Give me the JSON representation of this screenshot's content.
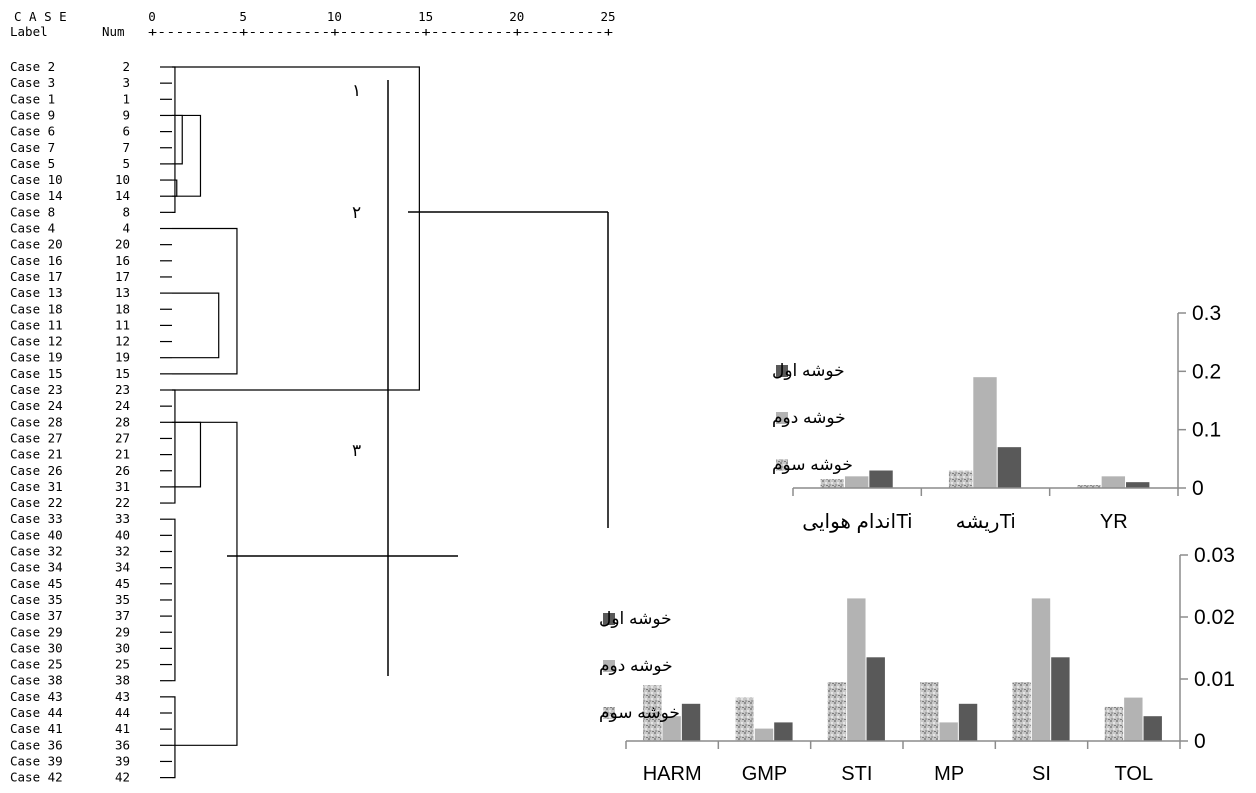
{
  "dendrogram": {
    "header": {
      "case": "C A S E",
      "label": "Label",
      "num": "Num"
    },
    "scale_ticks": [
      "0",
      "5",
      "10",
      "15",
      "20",
      "25"
    ],
    "scale_rule": "+---------+---------+---------+---------+---------+",
    "cluster_markers": [
      "١",
      "٢",
      "٣"
    ],
    "cases": [
      {
        "label": "Case 2",
        "num": "2"
      },
      {
        "label": "Case 3",
        "num": "3"
      },
      {
        "label": "Case 1",
        "num": "1"
      },
      {
        "label": "Case 9",
        "num": "9"
      },
      {
        "label": "Case 6",
        "num": "6"
      },
      {
        "label": "Case 7",
        "num": "7"
      },
      {
        "label": "Case 5",
        "num": "5"
      },
      {
        "label": "Case 10",
        "num": "10"
      },
      {
        "label": "Case 14",
        "num": "14"
      },
      {
        "label": "Case 8",
        "num": "8"
      },
      {
        "label": "Case 4",
        "num": "4"
      },
      {
        "label": "Case 20",
        "num": "20"
      },
      {
        "label": "Case 16",
        "num": "16"
      },
      {
        "label": "Case 17",
        "num": "17"
      },
      {
        "label": "Case 13",
        "num": "13"
      },
      {
        "label": "Case 18",
        "num": "18"
      },
      {
        "label": "Case 11",
        "num": "11"
      },
      {
        "label": "Case 12",
        "num": "12"
      },
      {
        "label": "Case 19",
        "num": "19"
      },
      {
        "label": "Case 15",
        "num": "15"
      },
      {
        "label": "Case 23",
        "num": "23"
      },
      {
        "label": "Case 24",
        "num": "24"
      },
      {
        "label": "Case 28",
        "num": "28"
      },
      {
        "label": "Case 27",
        "num": "27"
      },
      {
        "label": "Case 21",
        "num": "21"
      },
      {
        "label": "Case 26",
        "num": "26"
      },
      {
        "label": "Case 31",
        "num": "31"
      },
      {
        "label": "Case 22",
        "num": "22"
      },
      {
        "label": "Case 33",
        "num": "33"
      },
      {
        "label": "Case 40",
        "num": "40"
      },
      {
        "label": "Case 32",
        "num": "32"
      },
      {
        "label": "Case 34",
        "num": "34"
      },
      {
        "label": "Case 45",
        "num": "45"
      },
      {
        "label": "Case 35",
        "num": "35"
      },
      {
        "label": "Case 37",
        "num": "37"
      },
      {
        "label": "Case 29",
        "num": "29"
      },
      {
        "label": "Case 30",
        "num": "30"
      },
      {
        "label": "Case 25",
        "num": "25"
      },
      {
        "label": "Case 38",
        "num": "38"
      },
      {
        "label": "Case 43",
        "num": "43"
      },
      {
        "label": "Case 44",
        "num": "44"
      },
      {
        "label": "Case 41",
        "num": "41"
      },
      {
        "label": "Case 36",
        "num": "36"
      },
      {
        "label": "Case 39",
        "num": "39"
      },
      {
        "label": "Case 42",
        "num": "42"
      }
    ],
    "merges": [
      {
        "rows": [
          0,
          9
        ],
        "distance": 0.6
      },
      {
        "rows": [
          3,
          6
        ],
        "distance": 1.0
      },
      {
        "rows": [
          7,
          8
        ],
        "distance": 0.7
      },
      {
        "rows": [
          3,
          8
        ],
        "distance": 2.0
      },
      {
        "rows": [
          0,
          20
        ],
        "distance": 14.0
      },
      {
        "rows": [
          10,
          19
        ],
        "distance": 4.0
      },
      {
        "rows": [
          14,
          18
        ],
        "distance": 3.0
      },
      {
        "rows": [
          20,
          27
        ],
        "distance": 0.6
      },
      {
        "rows": [
          22,
          26
        ],
        "distance": 2.0
      },
      {
        "rows": [
          22,
          42
        ],
        "distance": 4.0
      },
      {
        "rows": [
          28,
          38
        ],
        "distance": 0.6
      },
      {
        "rows": [
          39,
          44
        ],
        "distance": 0.6
      }
    ]
  },
  "legend_labels": [
    "خوشه اول",
    "خوشه دوم",
    "خوشه سوم"
  ],
  "colors": {
    "cluster1": "#595959",
    "cluster2": "#b3b3b3",
    "cluster3": "#cfcfcf",
    "axis": "#8c8c8c",
    "dendro_line": "#000000"
  },
  "chart_data": [
    {
      "type": "bar",
      "categories": [
        "YR",
        "ریشهTi",
        "اندام هوایی‌Ti"
      ],
      "series": [
        {
          "name": "خوشه اول",
          "values": [
            0.01,
            0.07,
            0.03
          ]
        },
        {
          "name": "خوشه دوم",
          "values": [
            0.02,
            0.19,
            0.02
          ]
        },
        {
          "name": "خوشه سوم",
          "values": [
            0.005,
            0.03,
            0.015
          ]
        }
      ],
      "yticks": [
        "0",
        "0.1",
        "0.2",
        "0.3"
      ],
      "ylim": [
        0,
        0.3
      ],
      "axis_side": "right",
      "legend_position": "left"
    },
    {
      "type": "bar",
      "categories": [
        "TOL",
        "SI",
        "MP",
        "STI",
        "GMP",
        "HARM"
      ],
      "series": [
        {
          "name": "خوشه اول",
          "values": [
            0.004,
            0.0135,
            0.006,
            0.0135,
            0.003,
            0.006
          ]
        },
        {
          "name": "خوشه دوم",
          "values": [
            0.007,
            0.023,
            0.003,
            0.023,
            0.002,
            0.004
          ]
        },
        {
          "name": "خوشه سوم",
          "values": [
            0.0055,
            0.0095,
            0.0095,
            0.0095,
            0.007,
            0.009
          ]
        }
      ],
      "yticks": [
        "0",
        "0.01",
        "0.02",
        "0.03"
      ],
      "ylim": [
        0,
        0.03
      ],
      "axis_side": "right",
      "legend_position": "left"
    }
  ]
}
